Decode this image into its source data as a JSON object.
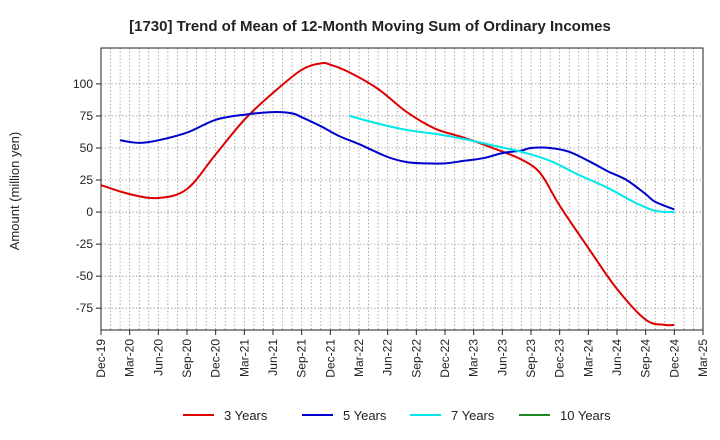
{
  "chart_data": {
    "type": "line",
    "title": "[1730]  Trend of Mean of 12-Month Moving Sum of Ordinary Incomes",
    "ylabel": "Amount (million yen)",
    "xlabel": "",
    "ylim": [
      -92,
      128
    ],
    "yticks": [
      100,
      75,
      50,
      25,
      0,
      -25,
      -50,
      -75
    ],
    "ytick_labels": [
      "100",
      "75",
      "50",
      "25",
      "0",
      "-25",
      "-50",
      "-75"
    ],
    "x_tick_labels": [
      "Dec-19",
      "Mar-20",
      "Jun-20",
      "Sep-20",
      "Dec-20",
      "Mar-21",
      "Jun-21",
      "Sep-21",
      "Dec-21",
      "Mar-22",
      "Jun-22",
      "Sep-22",
      "Dec-22",
      "Mar-23",
      "Jun-23",
      "Sep-23",
      "Dec-23",
      "Mar-24",
      "Jun-24",
      "Sep-24",
      "Dec-24",
      "Mar-25"
    ],
    "x_tick_index": [
      0,
      3,
      6,
      9,
      12,
      15,
      18,
      21,
      24,
      27,
      30,
      33,
      36,
      39,
      42,
      45,
      48,
      51,
      54,
      57,
      60,
      63
    ],
    "grid": true,
    "legend_position": "bottom",
    "series": [
      {
        "name": "3 Years",
        "color": "#dd0000",
        "x": [
          0,
          3,
          6,
          9,
          12,
          15,
          18,
          21,
          23,
          24,
          26,
          29,
          32,
          35,
          38,
          41,
          44,
          46,
          48,
          51,
          54,
          57,
          59,
          60
        ],
        "values": [
          21,
          14,
          11,
          18,
          45,
          72,
          93,
          111,
          116,
          115,
          109,
          96,
          78,
          65,
          58,
          50,
          41,
          30,
          5,
          -28,
          -60,
          -84,
          -88,
          -88
        ]
      },
      {
        "name": "5 Years",
        "color": "#0000cc",
        "x": [
          2,
          4,
          6,
          9,
          12,
          15,
          18,
          20,
          21,
          23,
          25,
          27,
          30,
          32,
          34,
          36,
          38,
          40,
          42,
          44,
          45,
          47,
          49,
          51,
          53,
          55,
          57,
          58,
          60
        ],
        "values": [
          56,
          54,
          56,
          62,
          72,
          76,
          78,
          77,
          74,
          67,
          59,
          53,
          43,
          39,
          38,
          38,
          40,
          42,
          46,
          48,
          50,
          50,
          47,
          40,
          32,
          25,
          14,
          8,
          2
        ]
      },
      {
        "name": "7 Years",
        "color": "#00e8e8",
        "x": [
          26,
          29,
          32,
          35,
          38,
          41,
          44,
          47,
          50,
          53,
          56,
          58,
          60
        ],
        "values": [
          75,
          69,
          64,
          61,
          57,
          52,
          47,
          40,
          29,
          19,
          7,
          1,
          0
        ]
      },
      {
        "name": "10 Years",
        "color": "#228822",
        "x": [],
        "values": []
      }
    ]
  }
}
